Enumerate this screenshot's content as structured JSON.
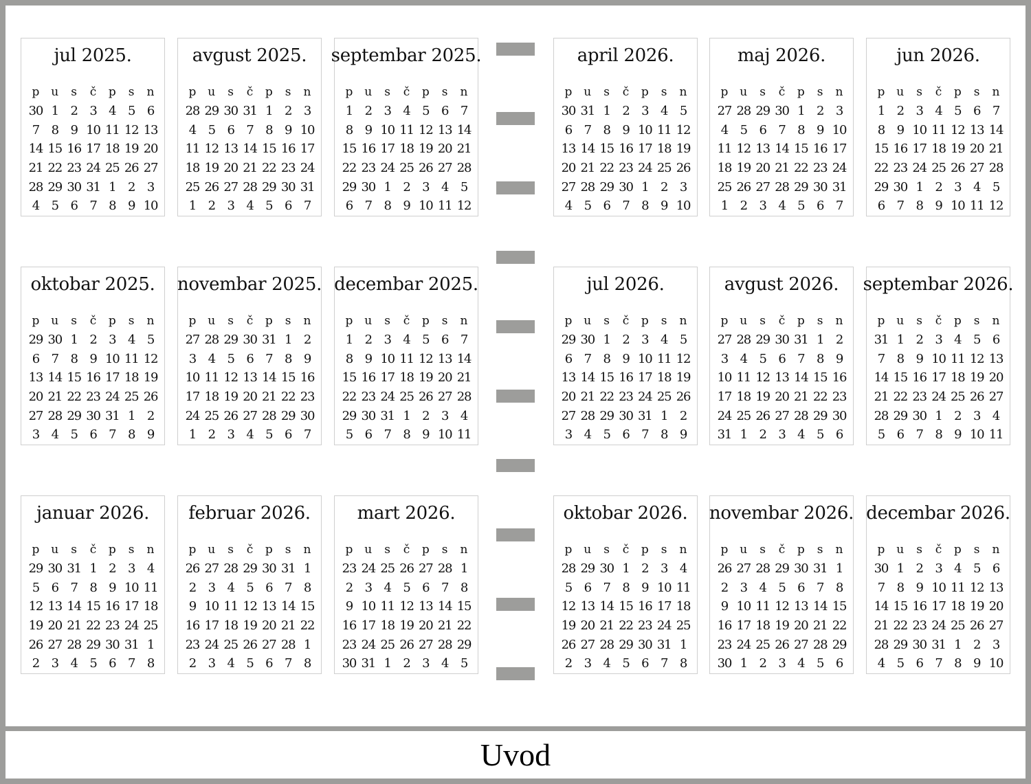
{
  "weekday_headers": [
    "p",
    "u",
    "s",
    "č",
    "p",
    "s",
    "n"
  ],
  "footer": {
    "title": "Uvod"
  },
  "colors": {
    "frame": "#9d9d9b",
    "calendar_border": "#cfcfcf"
  },
  "months": [
    {
      "title": "jul 2025.",
      "weeks": [
        "30 1 2 3 4 5 6",
        "7 8 9 10 11 12 13",
        "14 15 16 17 18 19 20",
        "21 22 23 24 25 26 27",
        "28 29 30 31 1 2 3",
        "4 5 6 7 8 9 10"
      ]
    },
    {
      "title": "avgust 2025.",
      "weeks": [
        "28 29 30 31 1 2 3",
        "4 5 6 7 8 9 10",
        "11 12 13 14 15 16 17",
        "18 19 20 21 22 23 24",
        "25 26 27 28 29 30 31",
        "1 2 3 4 5 6 7"
      ]
    },
    {
      "title": "septembar 2025.",
      "weeks": [
        "1 2 3 4 5 6 7",
        "8 9 10 11 12 13 14",
        "15 16 17 18 19 20 21",
        "22 23 24 25 26 27 28",
        "29 30 1 2 3 4 5",
        "6 7 8 9 10 11 12"
      ]
    },
    {
      "title": "april 2026.",
      "weeks": [
        "30 31 1 2 3 4 5",
        "6 7 8 9 10 11 12",
        "13 14 15 16 17 18 19",
        "20 21 22 23 24 25 26",
        "27 28 29 30 1 2 3",
        "4 5 6 7 8 9 10"
      ]
    },
    {
      "title": "maj 2026.",
      "weeks": [
        "27 28 29 30 1 2 3",
        "4 5 6 7 8 9 10",
        "11 12 13 14 15 16 17",
        "18 19 20 21 22 23 24",
        "25 26 27 28 29 30 31",
        "1 2 3 4 5 6 7"
      ]
    },
    {
      "title": "jun 2026.",
      "weeks": [
        "1 2 3 4 5 6 7",
        "8 9 10 11 12 13 14",
        "15 16 17 18 19 20 21",
        "22 23 24 25 26 27 28",
        "29 30 1 2 3 4 5",
        "6 7 8 9 10 11 12"
      ]
    },
    {
      "title": "oktobar 2025.",
      "weeks": [
        "29 30 1 2 3 4 5",
        "6 7 8 9 10 11 12",
        "13 14 15 16 17 18 19",
        "20 21 22 23 24 25 26",
        "27 28 29 30 31 1 2",
        "3 4 5 6 7 8 9"
      ]
    },
    {
      "title": "novembar 2025.",
      "weeks": [
        "27 28 29 30 31 1 2",
        "3 4 5 6 7 8 9",
        "10 11 12 13 14 15 16",
        "17 18 19 20 21 22 23",
        "24 25 26 27 28 29 30",
        "1 2 3 4 5 6 7"
      ]
    },
    {
      "title": "decembar 2025.",
      "weeks": [
        "1 2 3 4 5 6 7",
        "8 9 10 11 12 13 14",
        "15 16 17 18 19 20 21",
        "22 23 24 25 26 27 28",
        "29 30 31 1 2 3 4",
        "5 6 7 8 9 10 11"
      ]
    },
    {
      "title": "jul 2026.",
      "weeks": [
        "29 30 1 2 3 4 5",
        "6 7 8 9 10 11 12",
        "13 14 15 16 17 18 19",
        "20 21 22 23 24 25 26",
        "27 28 29 30 31 1 2",
        "3 4 5 6 7 8 9"
      ]
    },
    {
      "title": "avgust 2026.",
      "weeks": [
        "27 28 29 30 31 1 2",
        "3 4 5 6 7 8 9",
        "10 11 12 13 14 15 16",
        "17 18 19 20 21 22 23",
        "24 25 26 27 28 29 30",
        "31 1 2 3 4 5 6"
      ]
    },
    {
      "title": "septembar 2026.",
      "weeks": [
        "31 1 2 3 4 5 6",
        "7 8 9 10 11 12 13",
        "14 15 16 17 18 19 20",
        "21 22 23 24 25 26 27",
        "28 29 30 1 2 3 4",
        "5 6 7 8 9 10 11"
      ]
    },
    {
      "title": "januar 2026.",
      "weeks": [
        "29 30 31 1 2 3 4",
        "5 6 7 8 9 10 11",
        "12 13 14 15 16 17 18",
        "19 20 21 22 23 24 25",
        "26 27 28 29 30 31 1",
        "2 3 4 5 6 7 8"
      ]
    },
    {
      "title": "februar 2026.",
      "weeks": [
        "26 27 28 29 30 31 1",
        "2 3 4 5 6 7 8",
        "9 10 11 12 13 14 15",
        "16 17 18 19 20 21 22",
        "23 24 25 26 27 28 1",
        "2 3 4 5 6 7 8"
      ]
    },
    {
      "title": "mart 2026.",
      "weeks": [
        "23 24 25 26 27 28 1",
        "2 3 4 5 6 7 8",
        "9 10 11 12 13 14 15",
        "16 17 18 19 20 21 22",
        "23 24 25 26 27 28 29",
        "30 31 1 2 3 4 5"
      ]
    },
    {
      "title": "oktobar 2026.",
      "weeks": [
        "28 29 30 1 2 3 4",
        "5 6 7 8 9 10 11",
        "12 13 14 15 16 17 18",
        "19 20 21 22 23 24 25",
        "26 27 28 29 30 31 1",
        "2 3 4 5 6 7 8"
      ]
    },
    {
      "title": "novembar 2026.",
      "weeks": [
        "26 27 28 29 30 31 1",
        "2 3 4 5 6 7 8",
        "9 10 11 12 13 14 15",
        "16 17 18 19 20 21 22",
        "23 24 25 26 27 28 29",
        "30 1 2 3 4 5 6"
      ]
    },
    {
      "title": "decembar 2026.",
      "weeks": [
        "30 1 2 3 4 5 6",
        "7 8 9 10 11 12 13",
        "14 15 16 17 18 19 20",
        "21 22 23 24 25 26 27",
        "28 29 30 31 1 2 3",
        "4 5 6 7 8 9 10"
      ]
    }
  ]
}
